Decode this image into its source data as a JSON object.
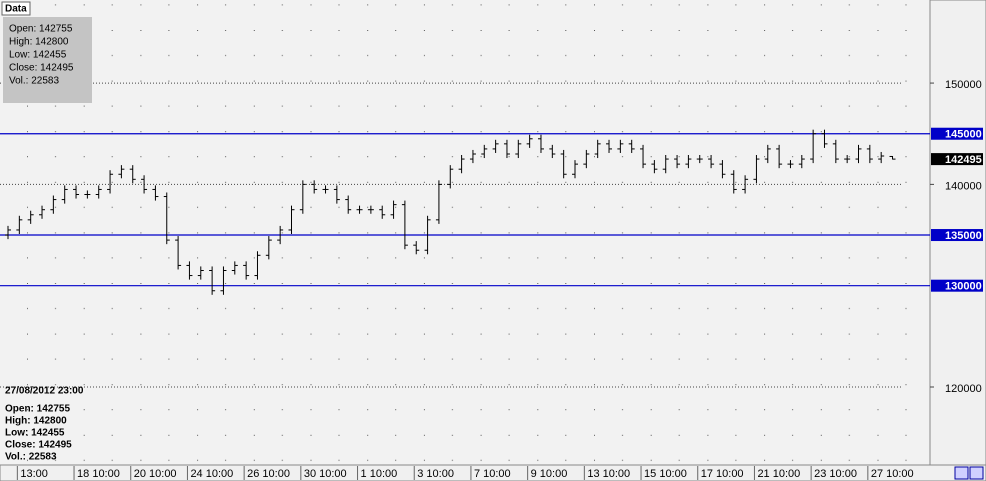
{
  "ui": {
    "tab": "Data",
    "info_top": [
      "Open: 142755",
      "High: 142800",
      "Low: 142455",
      "Close: 142495",
      "Vol.: 22583"
    ],
    "info_bottom": {
      "date": "27/08/2012 23:00",
      "lines": [
        "Open: 142755",
        "High: 142800",
        "Low: 142455",
        "Close: 142495",
        "Vol.: 22583"
      ]
    }
  },
  "chart_data": {
    "type": "ohlc",
    "bar_color": "#000000",
    "hline_color": "#0000c8",
    "grid": true,
    "ylim": [
      112300,
      158200
    ],
    "yticks": [
      120000,
      140000,
      150000
    ],
    "hlines": [
      130000,
      135000,
      145000
    ],
    "categories": [
      null,
      "13:00",
      null,
      null,
      null,
      null,
      "18 10:00",
      null,
      null,
      null,
      null,
      "20 10:00",
      null,
      null,
      null,
      null,
      "24 10:00",
      null,
      null,
      null,
      null,
      "26 10:00",
      null,
      null,
      null,
      null,
      "30 10:00",
      null,
      null,
      null,
      null,
      "1 10:00",
      null,
      null,
      null,
      null,
      "3 10:00",
      null,
      null,
      null,
      null,
      "7 10:00",
      null,
      null,
      null,
      null,
      "9 10:00",
      null,
      null,
      null,
      null,
      "13 10:00",
      null,
      null,
      null,
      null,
      "15 10:00",
      null,
      null,
      null,
      null,
      "17 10:00",
      null,
      null,
      null,
      null,
      "21 10:00",
      null,
      null,
      null,
      null,
      "23 10:00",
      null,
      null,
      null,
      null,
      "27 10:00",
      null,
      null
    ],
    "open": [
      135000,
      135500,
      136500,
      137000,
      137500,
      138500,
      139500,
      139000,
      139000,
      139500,
      141000,
      141500,
      140500,
      139500,
      138800,
      134500,
      132000,
      131000,
      131500,
      129500,
      131500,
      132000,
      131000,
      133000,
      134500,
      135500,
      137500,
      140000,
      139500,
      139500,
      138500,
      137500,
      137500,
      137500,
      137000,
      138000,
      134000,
      133500,
      136500,
      140000,
      141500,
      142500,
      143000,
      143500,
      144000,
      143000,
      144000,
      144500,
      143500,
      143000,
      141000,
      142000,
      143000,
      144000,
      143500,
      144000,
      143500,
      142000,
      141500,
      142500,
      142000,
      142500,
      142500,
      142000,
      141000,
      139500,
      140500,
      142500,
      143500,
      142000,
      142000,
      142500,
      145000,
      144000,
      142500,
      142500,
      143500,
      142500,
      142755
    ],
    "high": [
      135900,
      136900,
      137400,
      137900,
      138900,
      139900,
      139900,
      139400,
      139900,
      141400,
      141900,
      141900,
      140900,
      139900,
      139200,
      134900,
      132400,
      131900,
      131900,
      131900,
      132400,
      132400,
      133400,
      134900,
      135900,
      137900,
      140400,
      140400,
      139900,
      139900,
      138900,
      137900,
      137900,
      137900,
      138400,
      138400,
      134400,
      136900,
      140400,
      141900,
      142900,
      143400,
      143900,
      144400,
      144400,
      144400,
      144900,
      144900,
      143900,
      143400,
      142400,
      143400,
      144400,
      144400,
      144400,
      144400,
      143900,
      142400,
      142900,
      142900,
      142900,
      142900,
      142900,
      142400,
      141400,
      140900,
      142900,
      143900,
      143900,
      142400,
      142900,
      145400,
      145400,
      144400,
      142900,
      143900,
      143900,
      143200,
      142800
    ],
    "low": [
      134600,
      135100,
      136100,
      136600,
      137100,
      138100,
      138600,
      138600,
      138600,
      139100,
      140600,
      140100,
      139100,
      138400,
      134100,
      131600,
      130600,
      130600,
      129100,
      129100,
      131100,
      130600,
      130600,
      132600,
      134100,
      135100,
      137100,
      139100,
      139100,
      138100,
      137100,
      137100,
      137100,
      136600,
      136600,
      133600,
      133100,
      133100,
      136100,
      139600,
      141100,
      142100,
      142600,
      143100,
      142600,
      142600,
      143600,
      143100,
      142600,
      140600,
      140600,
      141600,
      142600,
      143100,
      143100,
      143100,
      141600,
      141100,
      141100,
      141600,
      141600,
      142100,
      141600,
      140600,
      139100,
      139100,
      140100,
      142100,
      141600,
      141600,
      141600,
      142100,
      143600,
      142100,
      142100,
      142100,
      142100,
      142100,
      142455
    ],
    "close": [
      135500,
      136500,
      137000,
      137500,
      138500,
      139500,
      139000,
      139000,
      139500,
      141000,
      141500,
      140500,
      139500,
      138800,
      134500,
      132000,
      131000,
      131500,
      129500,
      131500,
      132000,
      131000,
      133000,
      134500,
      135500,
      137500,
      140000,
      139500,
      139500,
      138500,
      137500,
      137500,
      137500,
      137000,
      138000,
      134000,
      133500,
      136500,
      140000,
      141500,
      142500,
      143000,
      143500,
      144000,
      143000,
      144000,
      144500,
      143500,
      143000,
      141000,
      142000,
      143000,
      144000,
      143500,
      144000,
      143500,
      142000,
      141500,
      142500,
      142000,
      142500,
      142500,
      142000,
      141000,
      139500,
      140500,
      142500,
      143500,
      142000,
      142000,
      142500,
      145000,
      144000,
      142500,
      142500,
      143500,
      142500,
      142800,
      142495
    ]
  }
}
